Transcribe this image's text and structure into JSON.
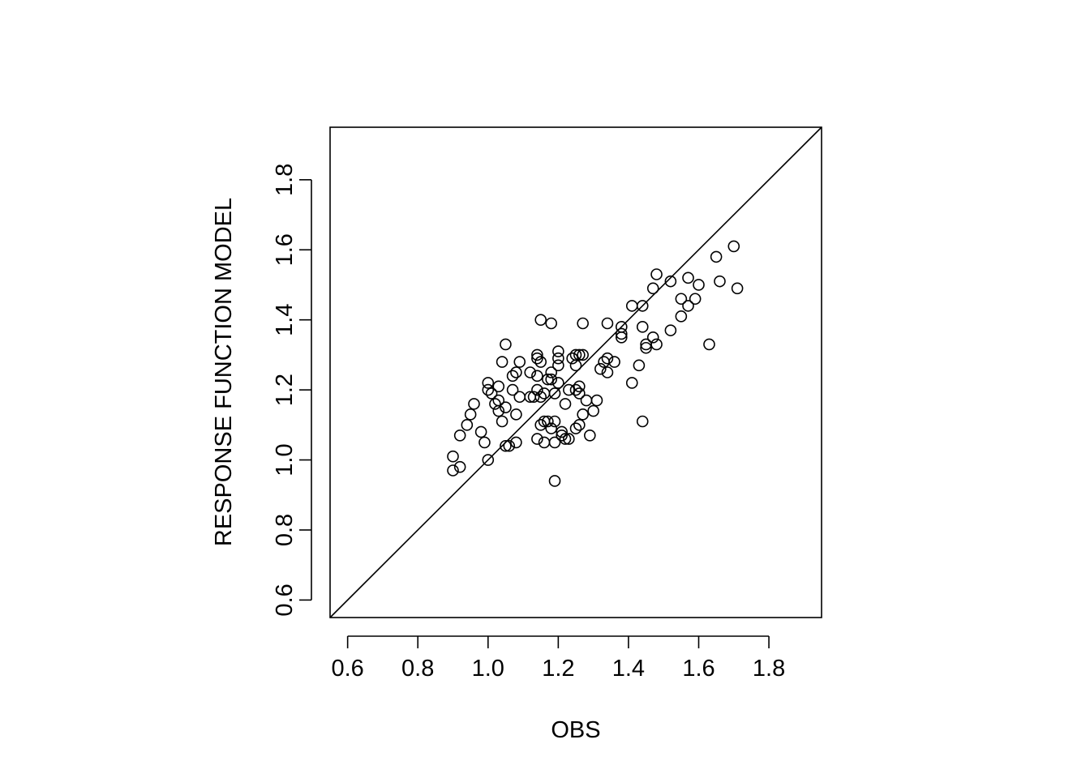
{
  "chart_data": {
    "type": "scatter",
    "title": "",
    "xlabel": "OBS",
    "ylabel": "RESPONSE FUNCTION MODEL",
    "xlim": [
      0.55,
      1.95
    ],
    "ylim": [
      0.55,
      1.95
    ],
    "x_ticks": [
      "0.6",
      "0.8",
      "1.0",
      "1.2",
      "1.4",
      "1.6",
      "1.8"
    ],
    "y_ticks": [
      "0.6",
      "0.8",
      "1.0",
      "1.2",
      "1.4",
      "1.6",
      "1.8"
    ],
    "reference_line": {
      "slope": 1,
      "intercept": 0
    },
    "grid": false,
    "marker": "open-circle",
    "color": "#000000",
    "points": [
      [
        0.9,
        1.01
      ],
      [
        0.9,
        0.97
      ],
      [
        0.92,
        0.98
      ],
      [
        0.92,
        1.07
      ],
      [
        0.94,
        1.1
      ],
      [
        0.95,
        1.13
      ],
      [
        0.96,
        1.16
      ],
      [
        0.98,
        1.08
      ],
      [
        0.99,
        1.05
      ],
      [
        1.0,
        1.2
      ],
      [
        1.0,
        1.22
      ],
      [
        1.0,
        1.0
      ],
      [
        1.01,
        1.19
      ],
      [
        1.02,
        1.16
      ],
      [
        1.03,
        1.14
      ],
      [
        1.03,
        1.17
      ],
      [
        1.03,
        1.21
      ],
      [
        1.04,
        1.28
      ],
      [
        1.04,
        1.11
      ],
      [
        1.05,
        1.04
      ],
      [
        1.05,
        1.15
      ],
      [
        1.05,
        1.33
      ],
      [
        1.06,
        1.04
      ],
      [
        1.07,
        1.2
      ],
      [
        1.07,
        1.24
      ],
      [
        1.08,
        1.13
      ],
      [
        1.08,
        1.05
      ],
      [
        1.08,
        1.25
      ],
      [
        1.09,
        1.28
      ],
      [
        1.09,
        1.18
      ],
      [
        1.12,
        1.18
      ],
      [
        1.12,
        1.25
      ],
      [
        1.13,
        1.18
      ],
      [
        1.14,
        1.29
      ],
      [
        1.14,
        1.3
      ],
      [
        1.14,
        1.24
      ],
      [
        1.14,
        1.06
      ],
      [
        1.14,
        1.2
      ],
      [
        1.15,
        1.4
      ],
      [
        1.15,
        1.28
      ],
      [
        1.15,
        1.1
      ],
      [
        1.15,
        1.18
      ],
      [
        1.16,
        1.05
      ],
      [
        1.16,
        1.11
      ],
      [
        1.16,
        1.19
      ],
      [
        1.17,
        1.23
      ],
      [
        1.17,
        1.11
      ],
      [
        1.18,
        1.39
      ],
      [
        1.18,
        1.09
      ],
      [
        1.18,
        1.25
      ],
      [
        1.18,
        1.23
      ],
      [
        1.19,
        1.19
      ],
      [
        1.19,
        0.94
      ],
      [
        1.19,
        1.11
      ],
      [
        1.19,
        1.05
      ],
      [
        1.2,
        1.27
      ],
      [
        1.2,
        1.29
      ],
      [
        1.2,
        1.31
      ],
      [
        1.2,
        1.22
      ],
      [
        1.21,
        1.08
      ],
      [
        1.21,
        1.07
      ],
      [
        1.22,
        1.16
      ],
      [
        1.22,
        1.06
      ],
      [
        1.23,
        1.06
      ],
      [
        1.23,
        1.2
      ],
      [
        1.24,
        1.29
      ],
      [
        1.25,
        1.3
      ],
      [
        1.25,
        1.2
      ],
      [
        1.25,
        1.27
      ],
      [
        1.25,
        1.09
      ],
      [
        1.26,
        1.3
      ],
      [
        1.26,
        1.19
      ],
      [
        1.26,
        1.21
      ],
      [
        1.26,
        1.1
      ],
      [
        1.27,
        1.39
      ],
      [
        1.27,
        1.3
      ],
      [
        1.27,
        1.13
      ],
      [
        1.28,
        1.17
      ],
      [
        1.29,
        1.07
      ],
      [
        1.3,
        1.14
      ],
      [
        1.31,
        1.17
      ],
      [
        1.32,
        1.26
      ],
      [
        1.33,
        1.28
      ],
      [
        1.34,
        1.25
      ],
      [
        1.34,
        1.29
      ],
      [
        1.34,
        1.39
      ],
      [
        1.36,
        1.28
      ],
      [
        1.38,
        1.36
      ],
      [
        1.38,
        1.38
      ],
      [
        1.38,
        1.35
      ],
      [
        1.41,
        1.44
      ],
      [
        1.41,
        1.22
      ],
      [
        1.43,
        1.27
      ],
      [
        1.44,
        1.38
      ],
      [
        1.44,
        1.44
      ],
      [
        1.44,
        1.11
      ],
      [
        1.45,
        1.32
      ],
      [
        1.45,
        1.33
      ],
      [
        1.47,
        1.49
      ],
      [
        1.47,
        1.35
      ],
      [
        1.48,
        1.53
      ],
      [
        1.48,
        1.33
      ],
      [
        1.52,
        1.51
      ],
      [
        1.52,
        1.37
      ],
      [
        1.55,
        1.41
      ],
      [
        1.55,
        1.46
      ],
      [
        1.57,
        1.44
      ],
      [
        1.57,
        1.52
      ],
      [
        1.59,
        1.46
      ],
      [
        1.6,
        1.5
      ],
      [
        1.63,
        1.33
      ],
      [
        1.65,
        1.58
      ],
      [
        1.66,
        1.51
      ],
      [
        1.7,
        1.61
      ],
      [
        1.71,
        1.49
      ]
    ]
  }
}
